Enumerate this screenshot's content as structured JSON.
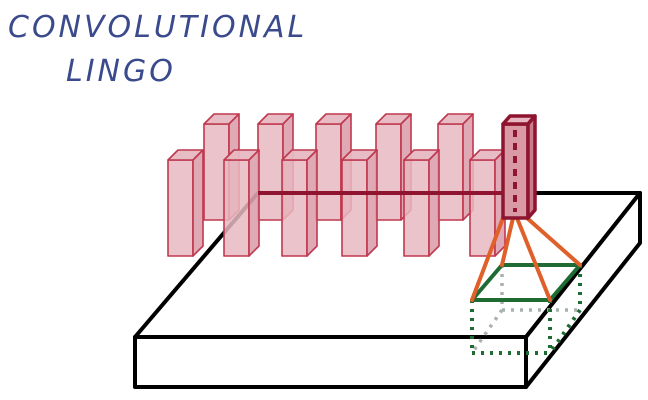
{
  "title": {
    "line1": "CONVOLUTIONAL",
    "line2": "LINGO"
  },
  "colors": {
    "title_ink": "#3b4a8c",
    "slab_outline": "#000000",
    "feature_fill": "#e7b8c1",
    "feature_stroke": "#c0384f",
    "selected_feature_stroke": "#8e1430",
    "projection_lines": "#e0602a",
    "receptive_field_front": "#1f6b34",
    "receptive_field_back": "#a9b1ad"
  },
  "diagram": {
    "feature_columns": 12,
    "highlighted_column": "rightmost-back"
  }
}
